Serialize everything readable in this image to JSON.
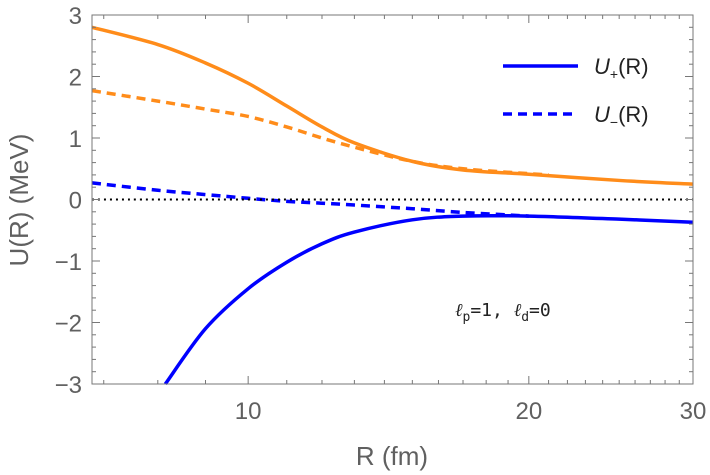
{
  "chart_data": {
    "type": "line",
    "xlabel": "R (fm)",
    "ylabel": "U(R) (MeV)",
    "xscale": "log",
    "xlim": [
      6.8,
      30
    ],
    "ylim": [
      -3,
      3
    ],
    "xticks": [
      "10",
      "20",
      "30"
    ],
    "yticks": [
      "-3",
      "-2",
      "-1",
      "0",
      "1",
      "2",
      "3"
    ],
    "legend_position": "top-right",
    "legend": [
      {
        "label": "U+(R)",
        "main": "U",
        "sub": "+",
        "arg": "(R)",
        "style": "solid"
      },
      {
        "label": "U−(R)",
        "main": "U",
        "sub": "−",
        "arg": "(R)",
        "style": "dashed"
      }
    ],
    "annotation": {
      "l1": "ℓ",
      "s1": "p",
      "v1": "=1, ",
      "l2": "ℓ",
      "s2": "d",
      "v2": "=0"
    },
    "series": [
      {
        "color": "#ff8c1a",
        "style": "solid",
        "x": [
          6.8,
          8,
          9,
          10,
          11,
          12,
          13,
          15,
          17,
          20,
          25,
          30
        ],
        "y": [
          2.8,
          2.52,
          2.22,
          1.89,
          1.52,
          1.18,
          0.92,
          0.62,
          0.48,
          0.41,
          0.31,
          0.25
        ]
      },
      {
        "color": "#ff8c1a",
        "style": "dashed",
        "x": [
          6.8,
          8,
          9,
          10,
          11,
          12,
          13,
          15,
          17,
          20,
          21
        ],
        "y": [
          1.77,
          1.6,
          1.47,
          1.35,
          1.18,
          1.0,
          0.85,
          0.62,
          0.5,
          0.42,
          0.4
        ]
      },
      {
        "color": "#0000ff",
        "style": "dashed",
        "x": [
          6.8,
          8,
          9,
          10,
          11,
          12,
          13,
          15,
          17,
          20
        ],
        "y": [
          0.27,
          0.15,
          0.08,
          0.02,
          -0.03,
          -0.06,
          -0.09,
          -0.15,
          -0.21,
          -0.27
        ]
      },
      {
        "color": "#0000ff",
        "style": "solid",
        "x": [
          8.15,
          9,
          10,
          11,
          12,
          13,
          15,
          17,
          20,
          25,
          30
        ],
        "y": [
          -3.0,
          -2.1,
          -1.45,
          -1.02,
          -0.72,
          -0.53,
          -0.33,
          -0.27,
          -0.27,
          -0.32,
          -0.37
        ]
      },
      {
        "color": "#000000",
        "style": "dotted",
        "x": [
          6.8,
          30
        ],
        "y": [
          0,
          0
        ]
      }
    ]
  }
}
